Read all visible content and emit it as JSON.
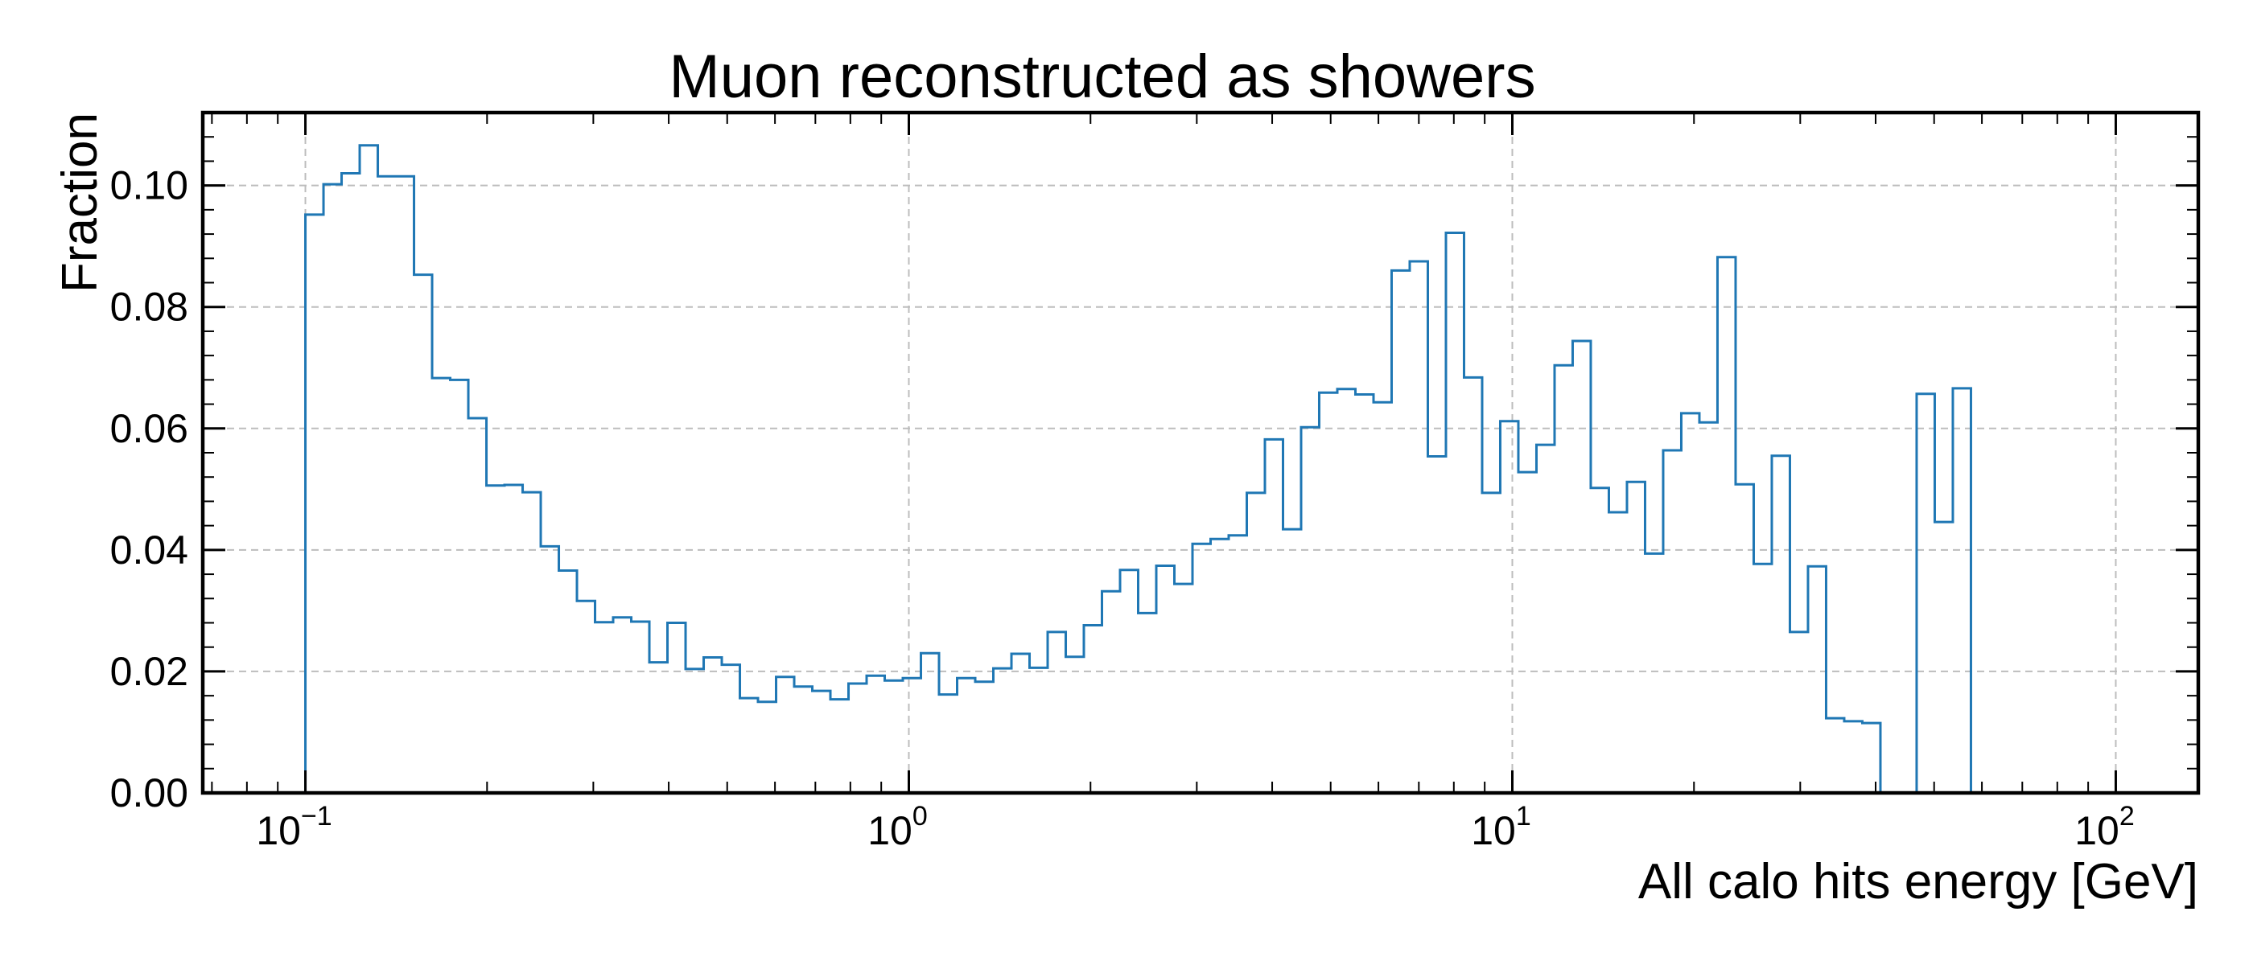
{
  "chart_data": {
    "type": "histogram-step",
    "title": "Muon reconstructed as showers",
    "xlabel": "All calo hits energy [GeV]",
    "ylabel": "Fraction",
    "x_scale": "log",
    "xlim": [
      0.0676,
      137
    ],
    "ylim": [
      0,
      0.112
    ],
    "grid": true,
    "x_ticks": [
      {
        "value": 0.1,
        "base": "10",
        "exp": "−1"
      },
      {
        "value": 1,
        "base": "10",
        "exp": "0"
      },
      {
        "value": 10,
        "base": "10",
        "exp": "1"
      },
      {
        "value": 100,
        "base": "10",
        "exp": "2"
      }
    ],
    "y_ticks": [
      {
        "value": 0.0,
        "label": "0.00"
      },
      {
        "value": 0.02,
        "label": "0.02"
      },
      {
        "value": 0.04,
        "label": "0.04"
      },
      {
        "value": 0.06,
        "label": "0.06"
      },
      {
        "value": 0.08,
        "label": "0.08"
      },
      {
        "value": 0.1,
        "label": "0.10"
      }
    ],
    "bins": {
      "start": 0.1,
      "stop": 100,
      "count": 100
    },
    "series": [
      {
        "color": "#1f77b4",
        "values": [
          0.0952,
          0.1002,
          0.102,
          0.1066,
          0.1015,
          0.1015,
          0.0853,
          0.0683,
          0.068,
          0.0617,
          0.0506,
          0.0507,
          0.0495,
          0.0406,
          0.0366,
          0.0316,
          0.0281,
          0.0289,
          0.0282,
          0.0215,
          0.028,
          0.0204,
          0.0223,
          0.0211,
          0.0156,
          0.015,
          0.0191,
          0.0175,
          0.0168,
          0.0154,
          0.018,
          0.0193,
          0.0185,
          0.0189,
          0.023,
          0.0162,
          0.0189,
          0.0183,
          0.0205,
          0.0229,
          0.0206,
          0.0265,
          0.0224,
          0.0276,
          0.0332,
          0.0367,
          0.0296,
          0.0374,
          0.0344,
          0.041,
          0.0418,
          0.0424,
          0.0494,
          0.0582,
          0.0434,
          0.0602,
          0.0659,
          0.0665,
          0.0656,
          0.0643,
          0.086,
          0.0875,
          0.0554,
          0.0922,
          0.0684,
          0.0494,
          0.0612,
          0.0528,
          0.0573,
          0.0704,
          0.0744,
          0.0502,
          0.0462,
          0.0512,
          0.0394,
          0.0564,
          0.0625,
          0.061,
          0.0882,
          0.0508,
          0.0377,
          0.0555,
          0.0265,
          0.0373,
          0.0123,
          0.0118,
          0.0115,
          0.0,
          0.0,
          0.0657,
          0.0446,
          0.0666,
          0.0,
          0.0,
          0.0,
          0.0,
          0.0,
          0.0,
          0.0,
          0.0
        ]
      }
    ]
  }
}
